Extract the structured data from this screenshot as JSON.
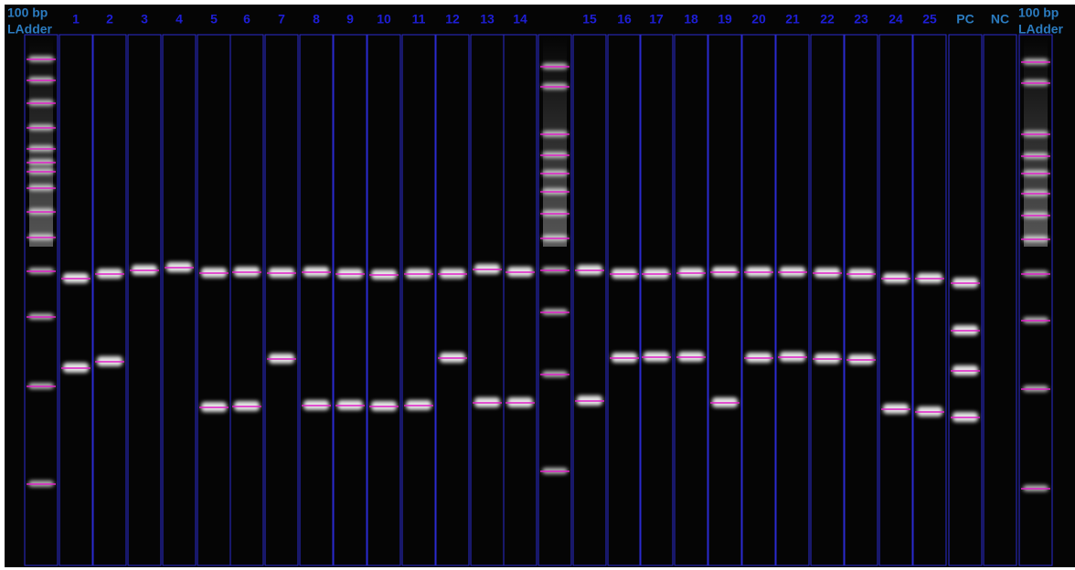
{
  "lane_labels": [
    [
      "100 bp",
      "LAdder"
    ],
    "1",
    "2",
    "3",
    "4",
    "5",
    "6",
    "7",
    "8",
    "9",
    "10",
    "11",
    "12",
    "13",
    "14",
    null,
    "15",
    "16",
    "17",
    "18",
    "19",
    "20",
    "21",
    "22",
    "23",
    "24",
    "25",
    "PC",
    "NC",
    [
      "100 bp",
      "LAdder"
    ]
  ]
}
